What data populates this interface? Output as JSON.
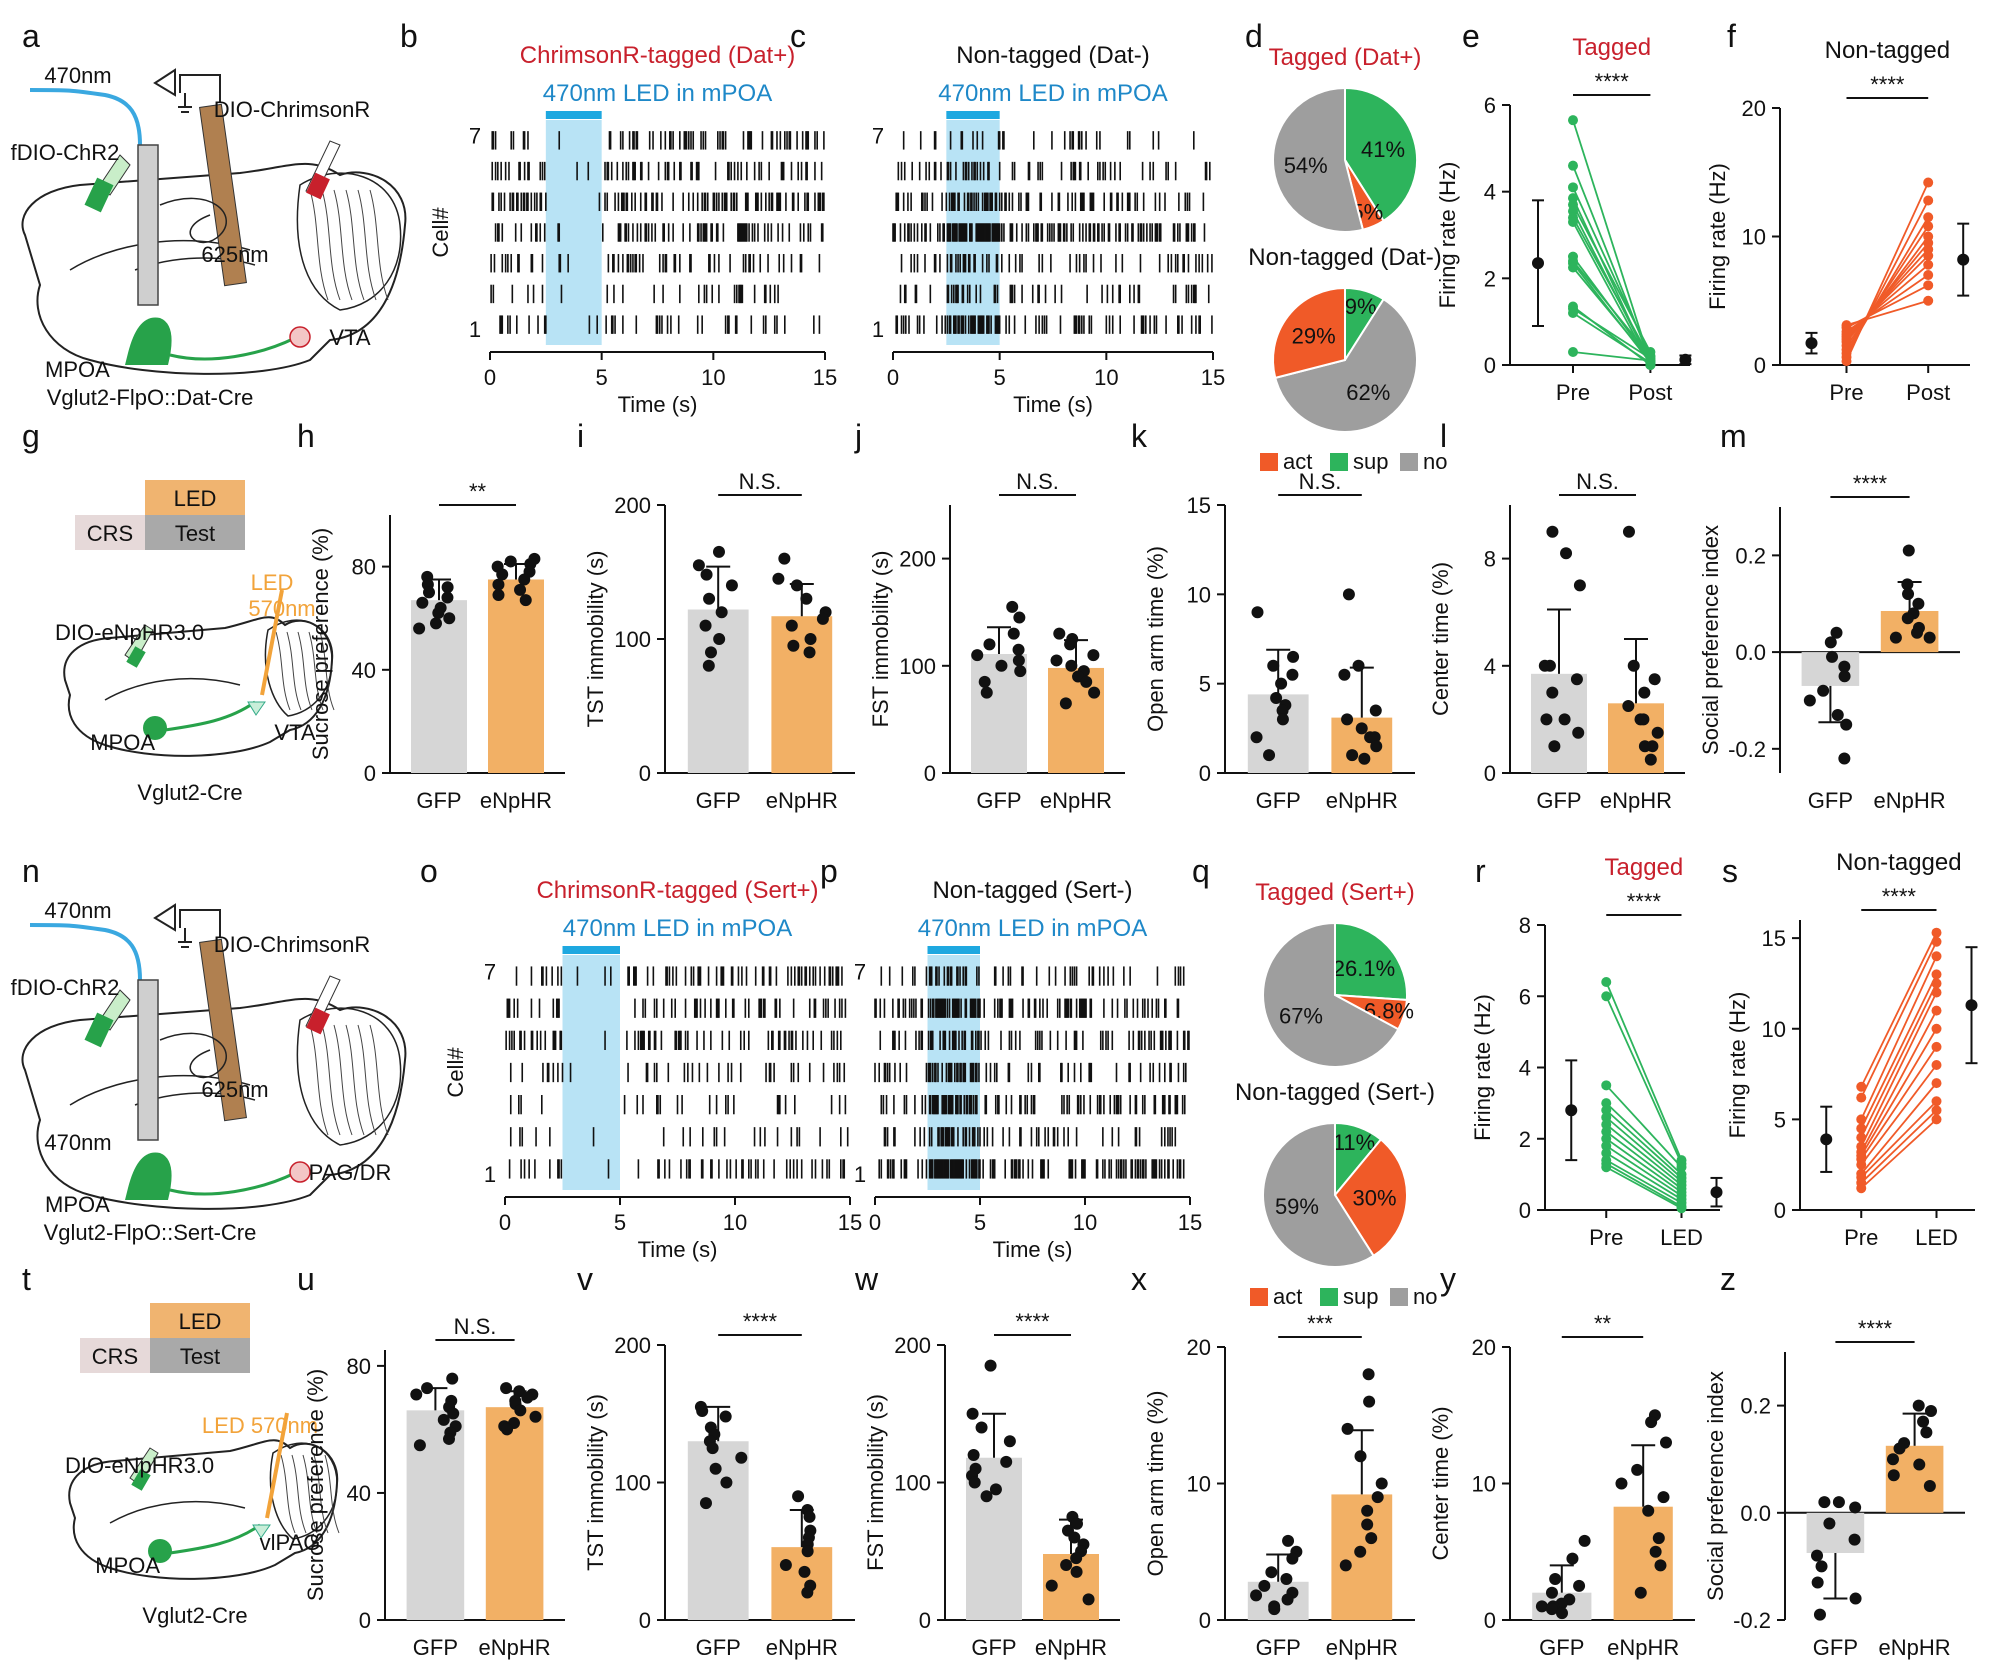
{
  "colors": {
    "tagged_red": "#c8202c",
    "led_blue": "#1e88c8",
    "light_blue": "#b8e3f5",
    "bar_blue": "#1ea8e0",
    "green": "#2db45c",
    "orange": "#f05a28",
    "gray": "#9e9e9e",
    "gfp_gray": "#d6d6d6",
    "enphr_orange": "#f2b065",
    "led_box": "#f0b470",
    "test_box": "#a9a9a9",
    "crs_box": "#e6d9d9",
    "mouse_green": "#27a24a"
  },
  "panel_letters": [
    "a",
    "b",
    "c",
    "d",
    "e",
    "f",
    "g",
    "h",
    "i",
    "j",
    "k",
    "l",
    "m",
    "n",
    "o",
    "p",
    "q",
    "r",
    "s",
    "t",
    "u",
    "v",
    "w",
    "x",
    "y",
    "z"
  ],
  "schematics": {
    "a": {
      "light": "470nm",
      "virus1": "fDIO-ChR2",
      "virus2": "DIO-ChrimsonR",
      "laser": "625nm",
      "source": "MPOA",
      "target": "VTA",
      "mouse": "Vglut2-FlpO::Dat-Cre"
    },
    "g": {
      "led": "LED",
      "crs": "CRS",
      "test": "Test",
      "virus": "DIO-eNpHR3.0",
      "led_label": "LED",
      "led_nm": "570nm",
      "source": "MPOA",
      "target": "VTA",
      "mouse": "Vglut2-Cre"
    },
    "n": {
      "light": "470nm",
      "virus1": "fDIO-ChR2",
      "virus2": "DIO-ChrimsonR",
      "laser": "625nm",
      "light2": "470nm",
      "source": "MPOA",
      "target": "PAG/DR",
      "mouse": "Vglut2-FlpO::Sert-Cre"
    },
    "t": {
      "led": "LED",
      "crs": "CRS",
      "test": "Test",
      "led_label": "LED 570nm",
      "virus": "DIO-eNpHR3.0",
      "source": "MPOA",
      "target": "vlPAG",
      "mouse": "Vglut2-Cre"
    }
  },
  "chart_data": [
    {
      "panel": "b",
      "type": "raster",
      "title": "ChrimsonR-tagged (Dat+)",
      "subtitle": "470nm LED in mPOA",
      "ylabel": "Cell#",
      "xlabel": "Time (s)",
      "xticks": [
        0,
        5,
        10,
        15
      ],
      "yticks": [
        "7",
        "1"
      ],
      "cells": 7,
      "led_window": [
        2.5,
        5
      ]
    },
    {
      "panel": "c",
      "type": "raster",
      "title": "Non-tagged (Dat-)",
      "subtitle": "470nm LED in mPOA",
      "xlabel": "Time (s)",
      "xticks": [
        0,
        5,
        10,
        15
      ],
      "yticks": [
        "7",
        "1"
      ],
      "cells": 7,
      "led_window": [
        2.5,
        5
      ]
    },
    {
      "panel": "d",
      "type": "pie",
      "title1": "Tagged (Dat+)",
      "slices1": [
        {
          "label": "41%",
          "value": 41,
          "cat": "sup"
        },
        {
          "label": "5%",
          "value": 5,
          "cat": "act"
        },
        {
          "label": "54%",
          "value": 54,
          "cat": "no"
        }
      ],
      "title2": "Non-tagged (Dat-)",
      "slices2": [
        {
          "label": "9%",
          "value": 9,
          "cat": "sup"
        },
        {
          "label": "62%",
          "value": 62,
          "cat": "no"
        },
        {
          "label": "29%",
          "value": 29,
          "cat": "act"
        }
      ],
      "legend": [
        "act",
        "sup",
        "no"
      ]
    },
    {
      "panel": "e",
      "type": "paired",
      "title": "Tagged",
      "ylabel": "Firing rate (Hz)",
      "categories": [
        "Pre",
        "Post"
      ],
      "ylim": [
        0,
        6
      ],
      "yticks": [
        0,
        2,
        4,
        6
      ],
      "sig": "****",
      "mean": [
        2.35,
        0.12
      ],
      "sd": [
        1.45,
        0.1
      ],
      "pre": [
        5.65,
        4.6,
        4.1,
        3.85,
        3.7,
        3.55,
        3.4,
        3.3,
        2.5,
        2.4,
        2.35,
        2.25,
        1.35,
        1.3,
        1.2,
        0.3
      ],
      "post": [
        0.05,
        0.1,
        0.2,
        0.0,
        0.3,
        0.05,
        0.15,
        0.0,
        0.1,
        0.2,
        0.05,
        0.1,
        0.0,
        0.15,
        0.05,
        0.1
      ]
    },
    {
      "panel": "f",
      "type": "paired",
      "title": "Non-tagged",
      "ylabel": "Firing rate (Hz)",
      "categories": [
        "Pre",
        "Post"
      ],
      "ylim": [
        0,
        20
      ],
      "yticks": [
        0,
        10,
        20
      ],
      "sig": "****",
      "mean": [
        1.7,
        8.2
      ],
      "sd": [
        0.8,
        2.8
      ],
      "pre": [
        0.3,
        0.6,
        0.9,
        1.2,
        1.5,
        1.8,
        2.0,
        2.2,
        2.4,
        2.6,
        2.9,
        3.1
      ],
      "post": [
        14.2,
        12.8,
        11.5,
        10.8,
        10.0,
        9.5,
        9.0,
        8.5,
        7.8,
        7.0,
        6.2,
        5.0
      ]
    },
    {
      "panel": "h",
      "type": "bar",
      "ylabel": "Sucrose preference (%)",
      "categories": [
        "GFP",
        "eNpHR"
      ],
      "values": [
        67,
        75
      ],
      "errors": [
        8,
        6
      ],
      "ylim": [
        0,
        100
      ],
      "yticks": [
        0,
        40,
        80
      ],
      "sig": "**",
      "points": [
        [
          76,
          73,
          72,
          70,
          68,
          66,
          64,
          62,
          60,
          58,
          56
        ],
        [
          83,
          82,
          81,
          80,
          78,
          77,
          75,
          73,
          71,
          69,
          67
        ]
      ]
    },
    {
      "panel": "i",
      "type": "bar",
      "ylabel": "TST immobility (s)",
      "categories": [
        "GFP",
        "eNpHR"
      ],
      "values": [
        122,
        117
      ],
      "errors": [
        32,
        24
      ],
      "ylim": [
        0,
        200
      ],
      "yticks": [
        0,
        100,
        200
      ],
      "sig": "N.S.",
      "points": [
        [
          165,
          155,
          148,
          140,
          130,
          120,
          110,
          100,
          90,
          80
        ],
        [
          160,
          145,
          140,
          130,
          120,
          115,
          110,
          100,
          95,
          90
        ]
      ]
    },
    {
      "panel": "j",
      "type": "bar",
      "ylabel": "FST immobility (s)",
      "categories": [
        "GFP",
        "eNpHR"
      ],
      "values": [
        111,
        98
      ],
      "errors": [
        25,
        26
      ],
      "ylim": [
        0,
        250
      ],
      "yticks": [
        0,
        100,
        200
      ],
      "sig": "N.S.",
      "points": [
        [
          155,
          145,
          130,
          120,
          115,
          110,
          105,
          100,
          95,
          85,
          75
        ],
        [
          130,
          125,
          120,
          110,
          105,
          100,
          95,
          90,
          85,
          75,
          65
        ]
      ]
    },
    {
      "panel": "k",
      "type": "bar",
      "ylabel": "Open arm time (%)",
      "categories": [
        "GFP",
        "eNpHR"
      ],
      "values": [
        4.4,
        3.1
      ],
      "errors": [
        2.5,
        2.8
      ],
      "ylim": [
        0,
        15
      ],
      "yticks": [
        0,
        5,
        10,
        15
      ],
      "sig": "N.S.",
      "points": [
        [
          9,
          6.5,
          6,
          5.5,
          5,
          4.2,
          3.8,
          3.5,
          3,
          2,
          1
        ],
        [
          10,
          6,
          5.5,
          3.5,
          3,
          2.5,
          2,
          2,
          1.5,
          1,
          0.8
        ]
      ]
    },
    {
      "panel": "l",
      "type": "bar",
      "ylabel": "Center time (%)",
      "categories": [
        "GFP",
        "eNpHR"
      ],
      "values": [
        3.7,
        2.6
      ],
      "errors": [
        2.4,
        2.4
      ],
      "ylim": [
        0,
        10
      ],
      "yticks": [
        0,
        4,
        8
      ],
      "sig": "N.S.",
      "points": [
        [
          9,
          8.2,
          7,
          4,
          4,
          3.5,
          3,
          2,
          2,
          1.5,
          1
        ],
        [
          9,
          4,
          3.5,
          3,
          2.5,
          2,
          2,
          1.5,
          1,
          1,
          0.5
        ]
      ]
    },
    {
      "panel": "m",
      "type": "bar",
      "ylabel": "Social preference index",
      "categories": [
        "GFP",
        "eNpHR"
      ],
      "values": [
        -0.07,
        0.085
      ],
      "errors": [
        0.075,
        0.06
      ],
      "ylim": [
        -0.25,
        0.3
      ],
      "yticks": [
        -0.2,
        0.0,
        0.2
      ],
      "sig": "****",
      "points": [
        [
          0.04,
          0.02,
          -0.01,
          -0.03,
          -0.05,
          -0.08,
          -0.1,
          -0.13,
          -0.15,
          -0.22
        ],
        [
          0.21,
          0.14,
          0.12,
          0.1,
          0.08,
          0.07,
          0.05,
          0.04,
          0.03,
          0.03
        ]
      ]
    },
    {
      "panel": "o",
      "type": "raster",
      "title": "ChrimsonR-tagged (Sert+)",
      "subtitle": "470nm LED in mPOA",
      "ylabel": "Cell#",
      "xlabel": "Time (s)",
      "xticks": [
        0,
        5,
        10,
        15
      ],
      "yticks": [
        "7",
        "1"
      ],
      "cells": 7,
      "led_window": [
        2.5,
        5
      ]
    },
    {
      "panel": "p",
      "type": "raster",
      "title": "Non-tagged (Sert-)",
      "subtitle": "470nm LED in mPOA",
      "xlabel": "Time (s)",
      "xticks": [
        0,
        5,
        10,
        15
      ],
      "yticks": [
        "7",
        "1"
      ],
      "cells": 7,
      "led_window": [
        2.5,
        5
      ]
    },
    {
      "panel": "q",
      "type": "pie",
      "title1": "Tagged (Sert+)",
      "slices1": [
        {
          "label": "26.1%",
          "value": 26.1,
          "cat": "sup"
        },
        {
          "label": "6.8%",
          "value": 6.8,
          "cat": "act"
        },
        {
          "label": "67%",
          "value": 67.1,
          "cat": "no"
        }
      ],
      "title2": "Non-tagged (Sert-)",
      "slices2": [
        {
          "label": "11%",
          "value": 11,
          "cat": "sup"
        },
        {
          "label": "30%",
          "value": 30,
          "cat": "act"
        },
        {
          "label": "59%",
          "value": 59,
          "cat": "no"
        }
      ],
      "legend": [
        "act",
        "sup",
        "no"
      ]
    },
    {
      "panel": "r",
      "type": "paired",
      "title": "Tagged",
      "ylabel": "Firing rate (Hz)",
      "categories": [
        "Pre",
        "LED"
      ],
      "ylim": [
        0,
        8
      ],
      "yticks": [
        0,
        2,
        4,
        6,
        8
      ],
      "sig": "****",
      "mean": [
        2.8,
        0.5
      ],
      "sd": [
        1.4,
        0.4
      ],
      "pre": [
        6.4,
        6.0,
        3.5,
        3.0,
        2.8,
        2.6,
        2.4,
        2.2,
        2.0,
        1.8,
        1.6,
        1.4,
        1.3,
        1.2
      ],
      "post": [
        1.4,
        1.3,
        1.2,
        1.0,
        0.9,
        0.8,
        0.7,
        0.6,
        0.5,
        0.4,
        0.3,
        0.2,
        0.1,
        0.05
      ]
    },
    {
      "panel": "s",
      "type": "paired",
      "title": "Non-tagged",
      "ylabel": "Firing rate (Hz)",
      "categories": [
        "Pre",
        "LED"
      ],
      "ylim": [
        0,
        16
      ],
      "yticks": [
        0,
        5,
        10,
        15
      ],
      "sig": "****",
      "mean": [
        3.9,
        11.3
      ],
      "sd": [
        1.8,
        3.2
      ],
      "pre": [
        6.8,
        6.2,
        5.0,
        4.5,
        4.0,
        3.5,
        3.2,
        3.0,
        2.8,
        2.5,
        2.0,
        1.8,
        1.5,
        1.2
      ],
      "post": [
        15.3,
        14.8,
        14.0,
        13.0,
        12.5,
        12.0,
        11.0,
        10.0,
        9.0,
        8.0,
        7.0,
        6.0,
        5.5,
        5.0
      ]
    },
    {
      "panel": "u",
      "type": "bar",
      "ylabel": "Sucrose preference (%)",
      "categories": [
        "GFP",
        "eNpHR"
      ],
      "values": [
        66,
        67
      ],
      "errors": [
        7,
        5
      ],
      "ylim": [
        0,
        85
      ],
      "yticks": [
        0,
        40,
        80
      ],
      "sig": "N.S.",
      "points": [
        [
          76,
          73,
          71,
          69,
          67,
          65,
          63,
          61,
          59,
          57,
          55
        ],
        [
          73,
          72,
          71,
          70,
          69,
          68,
          66,
          64,
          62,
          61,
          60
        ]
      ]
    },
    {
      "panel": "v",
      "type": "bar",
      "ylabel": "TST immobility (s)",
      "categories": [
        "GFP",
        "eNpHR"
      ],
      "values": [
        130,
        53
      ],
      "errors": [
        25,
        27
      ],
      "ylim": [
        0,
        200
      ],
      "yticks": [
        0,
        100,
        200
      ],
      "sig": "****",
      "points": [
        [
          155,
          152,
          148,
          140,
          135,
          130,
          125,
          118,
          110,
          100,
          85
        ],
        [
          90,
          80,
          75,
          65,
          60,
          55,
          50,
          40,
          35,
          25,
          20
        ]
      ]
    },
    {
      "panel": "w",
      "type": "bar",
      "ylabel": "FST immobility (s)",
      "categories": [
        "GFP",
        "eNpHR"
      ],
      "values": [
        118,
        48
      ],
      "errors": [
        32,
        25
      ],
      "ylim": [
        0,
        200
      ],
      "yticks": [
        0,
        100,
        200
      ],
      "sig": "****",
      "points": [
        [
          185,
          150,
          140,
          130,
          120,
          115,
          110,
          105,
          100,
          95,
          90
        ],
        [
          75,
          70,
          65,
          60,
          55,
          50,
          45,
          40,
          35,
          25,
          15
        ]
      ]
    },
    {
      "panel": "x",
      "type": "bar",
      "ylabel": "Open arm time (%)",
      "categories": [
        "GFP",
        "eNpHR"
      ],
      "values": [
        2.8,
        9.2
      ],
      "errors": [
        2.0,
        4.7
      ],
      "ylim": [
        0,
        20
      ],
      "yticks": [
        0,
        10,
        20
      ],
      "sig": "***",
      "points": [
        [
          5.8,
          5,
          4.5,
          3.5,
          3,
          2.5,
          2,
          1.8,
          1.5,
          1,
          0.8
        ],
        [
          18,
          16,
          14,
          12,
          10,
          9,
          8,
          7,
          6,
          5,
          4
        ]
      ]
    },
    {
      "panel": "y",
      "type": "bar",
      "ylabel": "Center time (%)",
      "categories": [
        "GFP",
        "eNpHR"
      ],
      "values": [
        2.0,
        8.3
      ],
      "errors": [
        2.0,
        4.5
      ],
      "ylim": [
        0,
        20
      ],
      "yticks": [
        0,
        10,
        20
      ],
      "sig": "**",
      "points": [
        [
          5.8,
          4.5,
          3,
          2.5,
          2,
          1.5,
          1.2,
          1,
          1,
          0.8,
          0.5
        ],
        [
          15,
          14.5,
          13,
          11,
          10,
          9,
          8,
          6,
          5,
          4,
          2
        ]
      ]
    },
    {
      "panel": "z",
      "type": "bar",
      "ylabel": "Social preference index",
      "categories": [
        "GFP",
        "eNpHR"
      ],
      "values": [
        -0.075,
        0.125
      ],
      "errors": [
        0.085,
        0.06
      ],
      "ylim": [
        -0.2,
        0.3
      ],
      "yticks": [
        -0.2,
        0.0,
        0.2
      ],
      "sig": "****",
      "points": [
        [
          0.02,
          0.02,
          0.01,
          -0.02,
          -0.05,
          -0.08,
          -0.1,
          -0.13,
          -0.16,
          -0.19
        ],
        [
          0.2,
          0.19,
          0.17,
          0.15,
          0.13,
          0.12,
          0.1,
          0.09,
          0.07,
          0.05
        ]
      ]
    }
  ]
}
